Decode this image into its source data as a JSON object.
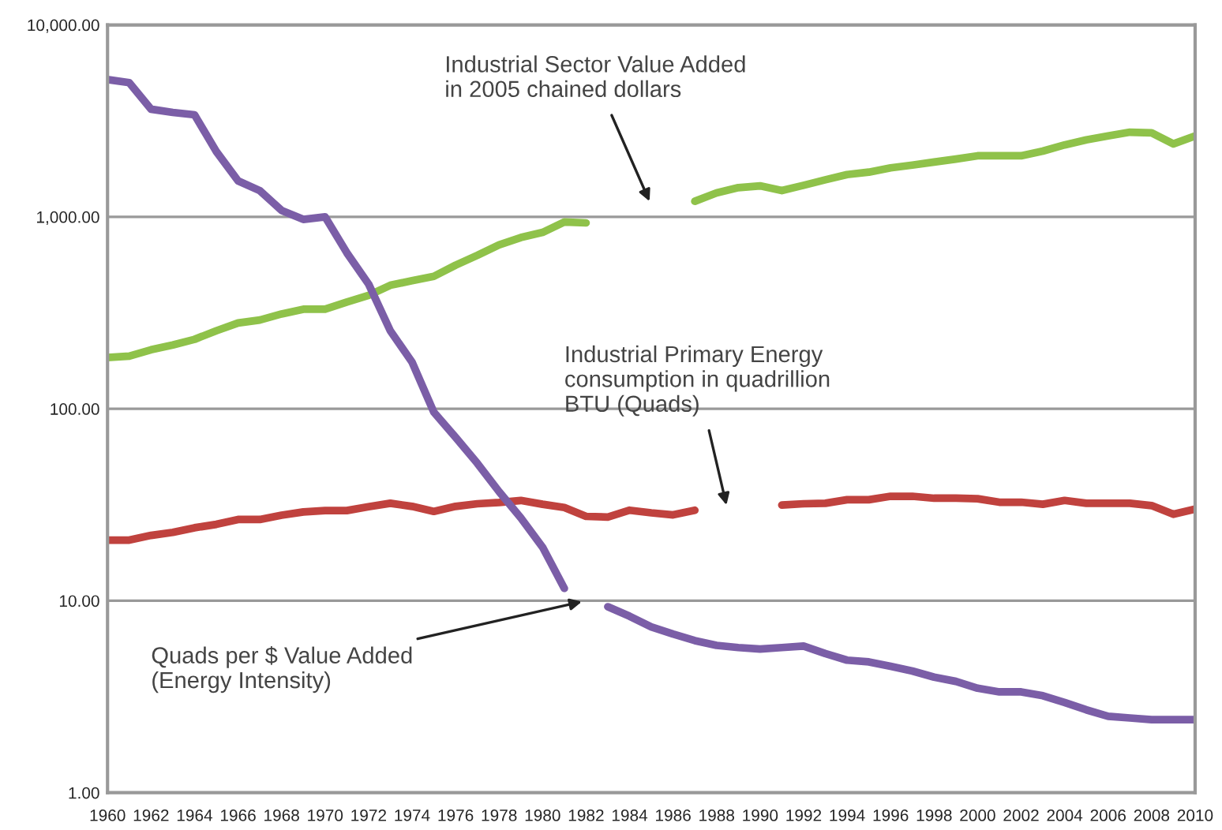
{
  "chart_data": {
    "type": "line",
    "log": "y",
    "grid": "y",
    "legend": false,
    "marker": "none",
    "line_style": "solid",
    "x": [
      1960,
      1961,
      1962,
      1963,
      1964,
      1965,
      1966,
      1967,
      1968,
      1969,
      1970,
      1971,
      1972,
      1973,
      1974,
      1975,
      1976,
      1977,
      1978,
      1979,
      1980,
      1981,
      1982,
      1983,
      1984,
      1985,
      1986,
      1987,
      1988,
      1989,
      1990,
      1991,
      1992,
      1993,
      1994,
      1995,
      1996,
      1997,
      1998,
      1999,
      2000,
      2001,
      2002,
      2003,
      2004,
      2005,
      2006,
      2007,
      2008,
      2009,
      2010
    ],
    "series": [
      {
        "color": "#8fc24a",
        "values": [
          185,
          188,
          203,
          215,
          230,
          255,
          280,
          290,
          312,
          330,
          330,
          360,
          390,
          440,
          465,
          490,
          560,
          630,
          715,
          780,
          830,
          940,
          930,
          null,
          null,
          null,
          null,
          1205,
          1333,
          1420,
          1450,
          1370,
          1460,
          1560,
          1660,
          1710,
          1800,
          1860,
          1930,
          2000,
          2080,
          2080,
          2080,
          2200,
          2370,
          2520,
          2640,
          2760,
          2740,
          2400,
          2640
        ]
      },
      {
        "color": "#c0423e",
        "values": [
          20.7,
          20.7,
          21.9,
          22.7,
          24,
          25,
          26.5,
          26.5,
          27.9,
          29,
          29.5,
          29.5,
          30.9,
          32.2,
          31,
          29.2,
          31,
          32,
          32.5,
          33.3,
          31.8,
          30.6,
          27.5,
          27.3,
          29.6,
          28.7,
          28,
          29.6,
          null,
          null,
          null,
          31.5,
          32,
          32.2,
          33.6,
          33.6,
          35,
          35,
          34.2,
          34.2,
          34,
          32.6,
          32.6,
          31.8,
          33.3,
          32.2,
          32.2,
          32.2,
          31.3,
          28.2,
          30
        ]
      },
      {
        "color": "#7b5ea7",
        "values": [
          5190,
          5000,
          3640,
          3500,
          3400,
          2190,
          1540,
          1370,
          1080,
          970,
          1000,
          650,
          447,
          255,
          175,
          96,
          71,
          52,
          37,
          27,
          19,
          11.6,
          null,
          9.3,
          8.3,
          7.3,
          6.7,
          6.2,
          5.85,
          5.7,
          5.6,
          5.7,
          5.8,
          5.3,
          4.9,
          4.8,
          4.55,
          4.3,
          4.0,
          3.8,
          3.5,
          3.35,
          3.35,
          3.2,
          2.95,
          2.7,
          2.5,
          2.45,
          2.4,
          2.4,
          2.4
        ]
      }
    ],
    "xlim": [
      1960,
      2010
    ],
    "xticks": [
      1960,
      1962,
      1964,
      1966,
      1968,
      1970,
      1972,
      1974,
      1976,
      1978,
      1980,
      1982,
      1984,
      1986,
      1988,
      1990,
      1992,
      1994,
      1996,
      1998,
      2000,
      2002,
      2004,
      2006,
      2008,
      2010
    ],
    "ylim": [
      1,
      10000
    ],
    "yticks": [
      {
        "value": 1,
        "label": "1.00"
      },
      {
        "value": 10,
        "label": "10.00"
      },
      {
        "value": 100,
        "label": "100.00"
      },
      {
        "value": 1000,
        "label": "1,000.00"
      },
      {
        "value": 10000,
        "label": "10,000.00"
      }
    ],
    "annotations": [
      "Industrial Sector Value Added\nin 2005 chained dollars",
      "Industrial Primary Energy\nconsumption in quadrillion\nBTU (Quads)",
      "Quads per $ Value Added\n(Energy Intensity)"
    ]
  }
}
